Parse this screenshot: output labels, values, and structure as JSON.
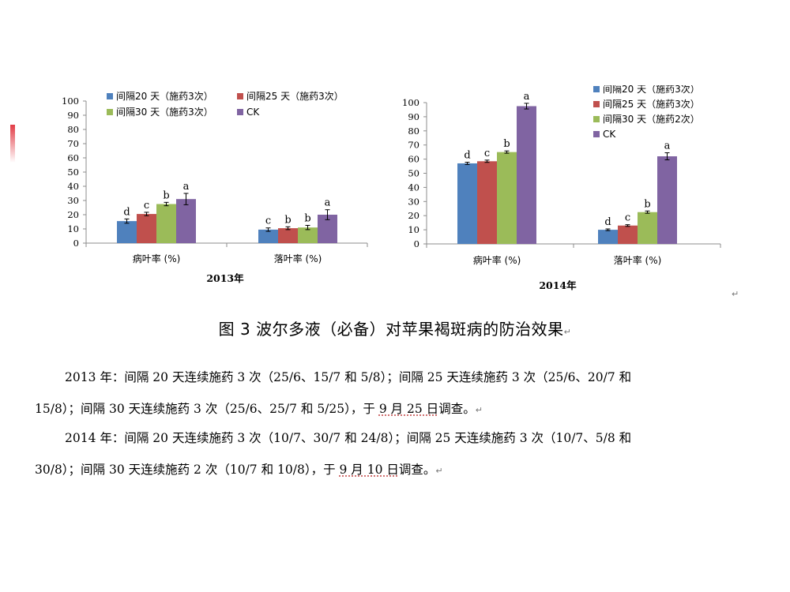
{
  "colors": {
    "series": [
      "#4f81bd",
      "#c0504d",
      "#9bbb59",
      "#8064a2"
    ],
    "axis": "#8c8c8c"
  },
  "chart_data": [
    {
      "type": "bar",
      "title": "2013年",
      "categories": [
        "病叶率 (%)",
        "落叶率 (%)"
      ],
      "ylim": [
        0,
        100
      ],
      "yticks": [
        0,
        10,
        20,
        30,
        40,
        50,
        60,
        70,
        80,
        90,
        100
      ],
      "legend": "top",
      "grid": false,
      "series": [
        {
          "name": "间隔20 天（施药3次）",
          "values": [
            15.5,
            9.5
          ],
          "errors": [
            1.5,
            1.2
          ],
          "labels": [
            "d",
            "c"
          ]
        },
        {
          "name": "间隔25 天（施药3次）",
          "values": [
            20.5,
            10.5
          ],
          "errors": [
            1.2,
            1.0
          ],
          "labels": [
            "c",
            "b"
          ]
        },
        {
          "name": "间隔30 天（施药3次）",
          "values": [
            27.5,
            11.0
          ],
          "errors": [
            1.2,
            1.5
          ],
          "labels": [
            "b",
            "b"
          ]
        },
        {
          "name": "CK",
          "values": [
            31.0,
            20.0
          ],
          "errors": [
            4.0,
            3.5
          ],
          "labels": [
            "a",
            "a"
          ]
        }
      ]
    },
    {
      "type": "bar",
      "title": "2014年",
      "categories": [
        "病叶率 (%)",
        "落叶率 (%)"
      ],
      "ylim": [
        0,
        100
      ],
      "yticks": [
        0,
        10,
        20,
        30,
        40,
        50,
        60,
        70,
        80,
        90,
        100
      ],
      "legend": "top-right",
      "grid": false,
      "series": [
        {
          "name": "间隔20 天（施药3次）",
          "values": [
            57.0,
            10.0
          ],
          "errors": [
            0.8,
            0.6
          ],
          "labels": [
            "d",
            "d"
          ]
        },
        {
          "name": "间隔25 天（施药3次）",
          "values": [
            58.5,
            13.0
          ],
          "errors": [
            0.8,
            0.6
          ],
          "labels": [
            "c",
            "c"
          ]
        },
        {
          "name": "间隔30 天（施药2次）",
          "values": [
            65.0,
            22.5
          ],
          "errors": [
            0.8,
            0.8
          ],
          "labels": [
            "b",
            "b"
          ]
        },
        {
          "name": "CK",
          "values": [
            97.5,
            62.0
          ],
          "errors": [
            2.0,
            2.5
          ],
          "labels": [
            "a",
            "a"
          ]
        }
      ]
    }
  ],
  "caption": "图 3  波尔多液（必备）对苹果褐斑病的防治效果",
  "para_mark": "↵",
  "paragraphs": {
    "p2013": {
      "line1": "2013 年：间隔 20 天连续施药 3 次（25/6、15/7 和 5/8）；间隔 25 天连续施药 3 次（25/6、20/7 和",
      "line2_a": "15/8）；间隔 30 天连续施药 3 次（25/6、25/7 和 5/25），于 ",
      "line2_date": "9 月 25 日",
      "line2_b": "调查。"
    },
    "p2014": {
      "line1": "2014 年：间隔 20 天连续施药 3 次（10/7、30/7 和 24/8）；间隔 25 天连续施药 3 次（10/7、5/8 和",
      "line2_a": "30/8）；间隔 30 天连续施药 2 次（10/7 和 10/8），于 ",
      "line2_date": "9 月 10 日",
      "line2_b": "调查。"
    }
  }
}
